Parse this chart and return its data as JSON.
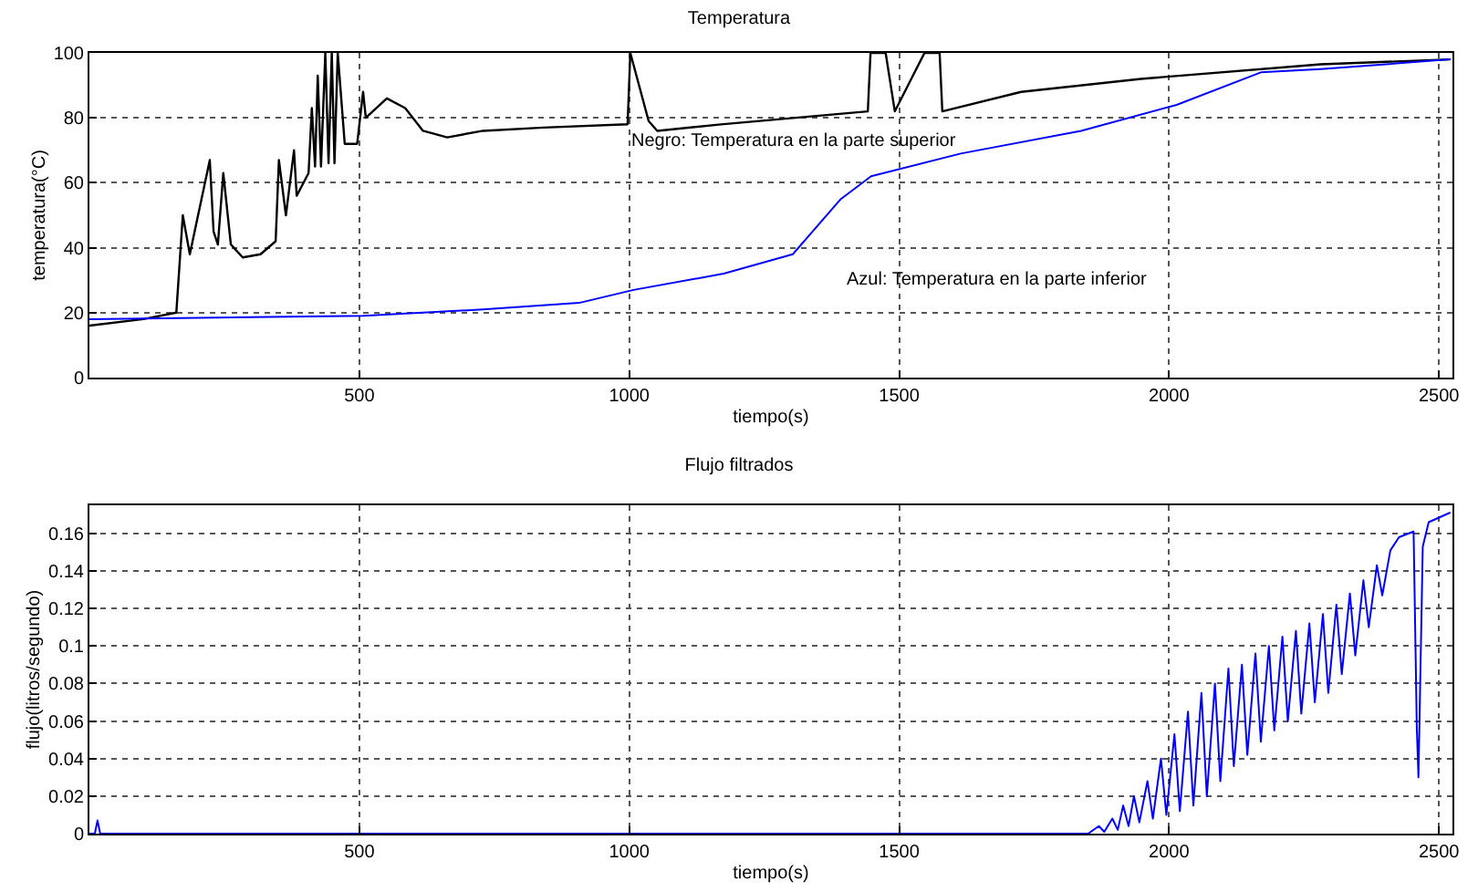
{
  "chart_data": [
    {
      "type": "line",
      "title": "Temperatura",
      "xlabel": "tiempo(s)",
      "ylabel": "temperatura(°C)",
      "xlim": [
        0,
        2525
      ],
      "xticks": [
        500,
        1000,
        1500,
        2000,
        2500
      ],
      "ylim": [
        0,
        100
      ],
      "yticks": [
        0,
        20,
        40,
        60,
        80,
        100
      ],
      "grid": true,
      "marker": "none",
      "line_style": "solid",
      "annotations": [
        "Negro: Temperatura en la parte superior",
        "Azul: Temperatura en la parte inferior"
      ],
      "series": [
        {
          "color": "#000000",
          "x": [
            0,
            100,
            161,
            173,
            186,
            223,
            230,
            238,
            248,
            262,
            284,
            317,
            345,
            351,
            364,
            379,
            384,
            406,
            412,
            418,
            423,
            429,
            437,
            443,
            449,
            454,
            460,
            473,
            496,
            507,
            512,
            551,
            585,
            618,
            663,
            729,
            841,
            997,
            1002,
            1036,
            1052,
            1170,
            1442,
            1447,
            1475,
            1492,
            1547,
            1575,
            1580,
            1726,
            1948,
            2281,
            2520
          ],
          "values": [
            16,
            18,
            20,
            50,
            38,
            67,
            45,
            41,
            63,
            41,
            37,
            38,
            42,
            67,
            50,
            70,
            56,
            63,
            83,
            65,
            93,
            65,
            100,
            66,
            100,
            66,
            100,
            72,
            72,
            88,
            80,
            86,
            83,
            76,
            74,
            76,
            77,
            78,
            100,
            79,
            76,
            78,
            82,
            100,
            100,
            82,
            100,
            100,
            82,
            88,
            92,
            96.5,
            98
          ]
        },
        {
          "color": "#0000ff",
          "x": [
            0,
            507,
            729,
            907,
            1008,
            1175,
            1303,
            1392,
            1448,
            1614,
            1837,
            2014,
            2170,
            2281,
            2520
          ],
          "values": [
            18,
            19,
            21,
            23,
            27,
            32,
            38,
            55,
            62,
            69,
            76,
            84,
            94,
            95,
            98
          ]
        }
      ]
    },
    {
      "type": "line",
      "title": "Flujo filtrados",
      "xlabel": "tiempo(s)",
      "ylabel": "flujo(litros/segundo)",
      "xlim": [
        0,
        2525
      ],
      "xticks": [
        500,
        1000,
        1500,
        2000,
        2500
      ],
      "ylim": [
        0,
        0.175
      ],
      "yticks": [
        0,
        0.02,
        0.04,
        0.06,
        0.08,
        0.1,
        0.12,
        0.14,
        0.16
      ],
      "grid": true,
      "marker": "none",
      "line_style": "solid",
      "series": [
        {
          "color": "#0000ff",
          "x": [
            0,
            10,
            15,
            20,
            1700,
            1850,
            1870,
            1880,
            1895,
            1905,
            1915,
            1925,
            1935,
            1945,
            1960,
            1970,
            1985,
            1995,
            2010,
            2020,
            2035,
            2045,
            2060,
            2070,
            2085,
            2095,
            2110,
            2120,
            2135,
            2145,
            2160,
            2170,
            2185,
            2195,
            2210,
            2220,
            2235,
            2245,
            2260,
            2270,
            2285,
            2295,
            2310,
            2320,
            2335,
            2345,
            2360,
            2370,
            2385,
            2395,
            2410,
            2426,
            2453,
            2459,
            2462,
            2470,
            2481,
            2520
          ],
          "values": [
            0,
            0,
            0.007,
            0,
            0,
            0,
            0.004,
            0.001,
            0.008,
            0.002,
            0.015,
            0.004,
            0.02,
            0.006,
            0.028,
            0.008,
            0.04,
            0.01,
            0.053,
            0.012,
            0.065,
            0.015,
            0.075,
            0.02,
            0.08,
            0.028,
            0.088,
            0.036,
            0.09,
            0.042,
            0.096,
            0.049,
            0.1,
            0.055,
            0.105,
            0.06,
            0.108,
            0.064,
            0.112,
            0.07,
            0.117,
            0.075,
            0.122,
            0.085,
            0.128,
            0.095,
            0.135,
            0.11,
            0.143,
            0.127,
            0.151,
            0.158,
            0.161,
            0.056,
            0.03,
            0.153,
            0.166,
            0.171
          ]
        }
      ]
    }
  ]
}
